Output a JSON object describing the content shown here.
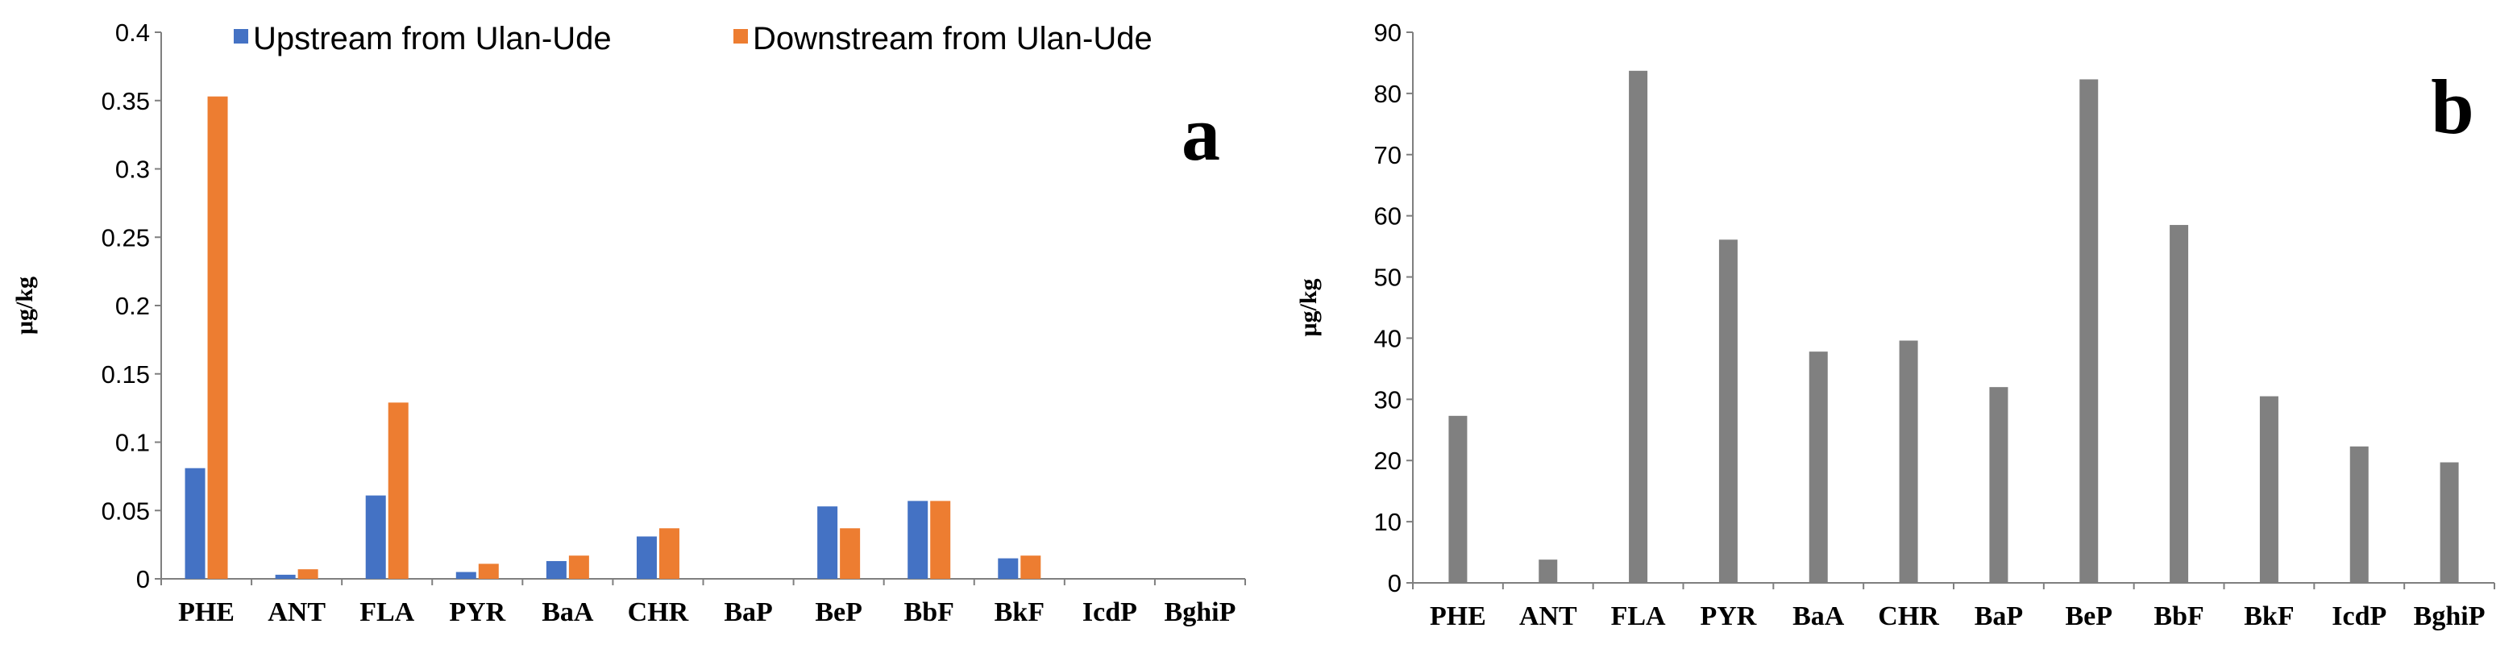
{
  "chart_data": [
    {
      "panel": "a",
      "type": "bar",
      "panel_label": "a",
      "ylabel": "μg/kg",
      "ylim": [
        0,
        0.4
      ],
      "yticks": [
        "0",
        "0.05",
        "0.1",
        "0.15",
        "0.2",
        "0.25",
        "0.3",
        "0.35",
        "0.4"
      ],
      "categories": [
        "PHE",
        "ANT",
        "FLA",
        "PYR",
        "BaA",
        "CHR",
        "BaP",
        "BeP",
        "BbF",
        "BkF",
        "IcdP",
        "BghiP"
      ],
      "legend_position": "top",
      "grid": false,
      "series": [
        {
          "name": "Upstream from Ulan-Ude",
          "color": "#4472C4",
          "values": [
            0.081,
            0.003,
            0.061,
            0.005,
            0.013,
            0.031,
            0,
            0.053,
            0.057,
            0.015,
            0,
            0
          ]
        },
        {
          "name": "Downstream from Ulan-Ude",
          "color": "#ED7D31",
          "values": [
            0.353,
            0.007,
            0.129,
            0.011,
            0.017,
            0.037,
            0,
            0.037,
            0.057,
            0.017,
            0,
            0
          ]
        }
      ]
    },
    {
      "panel": "b",
      "type": "bar",
      "panel_label": "b",
      "ylabel": "μg/kg",
      "ylim": [
        0,
        90
      ],
      "yticks": [
        "0",
        "10",
        "20",
        "30",
        "40",
        "50",
        "60",
        "70",
        "80",
        "90"
      ],
      "categories": [
        "PHE",
        "ANT",
        "FLA",
        "PYR",
        "BaA",
        "CHR",
        "BaP",
        "BeP",
        "BbF",
        "BkF",
        "IcdP",
        "BghiP"
      ],
      "grid": false,
      "series": [
        {
          "color": "#808080",
          "values": [
            27.3,
            3.8,
            83.7,
            56.1,
            37.8,
            39.6,
            32.0,
            82.3,
            58.5,
            30.5,
            22.3,
            19.7
          ]
        }
      ]
    }
  ]
}
